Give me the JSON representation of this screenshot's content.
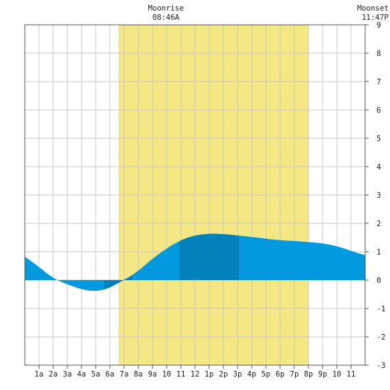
{
  "chart_data": {
    "type": "area",
    "ylim": [
      -3,
      9
    ],
    "grid": true,
    "y_ticks": [
      "-3",
      "-2",
      "-1",
      "0",
      "1",
      "2",
      "3",
      "4",
      "5",
      "6",
      "7",
      "8",
      "9"
    ],
    "x_tick_labels": [
      "1a",
      "2a",
      "3a",
      "4a",
      "5a",
      "6a",
      "7a",
      "8a",
      "9a",
      "10",
      "11",
      "12",
      "1p",
      "2p",
      "3p",
      "4p",
      "5p",
      "6p",
      "7p",
      "8p",
      "9p",
      "10",
      "11"
    ],
    "daylight_hours": [
      6.6,
      20.0
    ],
    "series": [
      {
        "x": [
          0,
          0.5,
          1,
          1.5,
          2,
          2.5,
          3,
          3.5,
          4,
          4.5,
          5,
          5.5,
          6,
          6.5,
          7,
          7.5,
          8,
          8.5,
          9,
          9.5,
          10,
          10.5,
          11,
          11.5,
          12,
          12.5,
          13,
          13.5,
          14,
          14.5,
          15,
          15.5,
          16,
          16.5,
          17,
          17.5,
          18,
          18.5,
          19,
          19.5,
          20,
          20.5,
          21,
          21.5,
          22,
          22.5,
          23,
          23.5,
          24
        ],
        "values": [
          0.82,
          0.65,
          0.46,
          0.26,
          0.08,
          -0.05,
          -0.15,
          -0.24,
          -0.32,
          -0.37,
          -0.38,
          -0.35,
          -0.26,
          -0.13,
          0.01,
          0.15,
          0.33,
          0.54,
          0.75,
          0.94,
          1.11,
          1.27,
          1.4,
          1.5,
          1.57,
          1.61,
          1.63,
          1.63,
          1.62,
          1.6,
          1.57,
          1.55,
          1.52,
          1.49,
          1.46,
          1.43,
          1.41,
          1.39,
          1.38,
          1.36,
          1.34,
          1.32,
          1.29,
          1.25,
          1.19,
          1.12,
          1.03,
          0.95,
          0.88
        ]
      }
    ],
    "highlight_ranges": [
      [
        5.6,
        7.6
      ],
      [
        10.9,
        15.1
      ]
    ],
    "colors": {
      "daylight": "#f3e883",
      "tide": "#0399de",
      "tide_highlight": "#0281bb",
      "grid": "#c8c8c8"
    }
  },
  "events": [
    {
      "label": "Moonrise",
      "time": "08:46A",
      "hour": 9.77
    },
    {
      "label": "Moonset",
      "time": "11:47P",
      "hour": 23.78
    }
  ]
}
